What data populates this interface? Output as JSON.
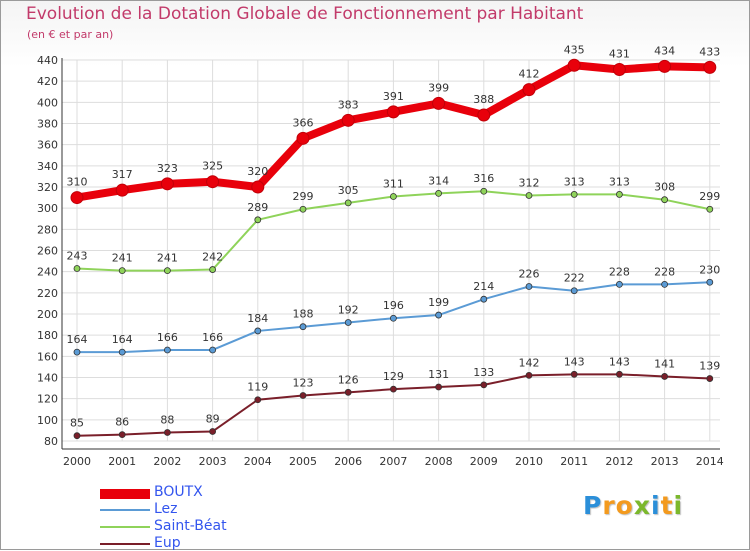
{
  "chart_data": {
    "type": "line",
    "title": "Evolution de la Dotation Globale de Fonctionnement par Habitant",
    "subtitle": "(en € et par an)",
    "xlabel": "",
    "ylabel": "",
    "x": [
      "2000",
      "2001",
      "2002",
      "2003",
      "2004",
      "2005",
      "2006",
      "2007",
      "2008",
      "2009",
      "2010",
      "2011",
      "2012",
      "2013",
      "2014"
    ],
    "ylim": [
      80,
      440
    ],
    "yticks": [
      80,
      100,
      120,
      140,
      160,
      180,
      200,
      220,
      240,
      260,
      280,
      300,
      320,
      340,
      360,
      380,
      400,
      420,
      440
    ],
    "grid": true,
    "legend_position": "bottom-left",
    "series": [
      {
        "name": "BOUTX",
        "color": "#e8000b",
        "values": [
          310,
          317,
          323,
          325,
          320,
          366,
          383,
          391,
          399,
          388,
          412,
          435,
          431,
          434,
          433
        ]
      },
      {
        "name": "Lez",
        "color": "#5b9bd5",
        "values": [
          164,
          164,
          166,
          166,
          184,
          188,
          192,
          196,
          199,
          214,
          226,
          222,
          228,
          228,
          230
        ]
      },
      {
        "name": "Saint-Béat",
        "color": "#8fd35a",
        "values": [
          243,
          241,
          241,
          242,
          289,
          299,
          305,
          311,
          314,
          316,
          312,
          313,
          313,
          308,
          299
        ]
      },
      {
        "name": "Eup",
        "color": "#7a1f2a",
        "values": [
          85,
          86,
          88,
          89,
          119,
          123,
          126,
          129,
          131,
          133,
          142,
          143,
          143,
          141,
          139
        ]
      }
    ]
  },
  "branding": {
    "logo_letters": [
      "P",
      "r",
      "o",
      "x",
      "i",
      "t",
      "i"
    ],
    "logo_colors": [
      "#2b8fd9",
      "#f39a1e",
      "#f39a1e",
      "#7bb82c",
      "#2b8fd9",
      "#f39a1e",
      "#7bb82c"
    ]
  }
}
